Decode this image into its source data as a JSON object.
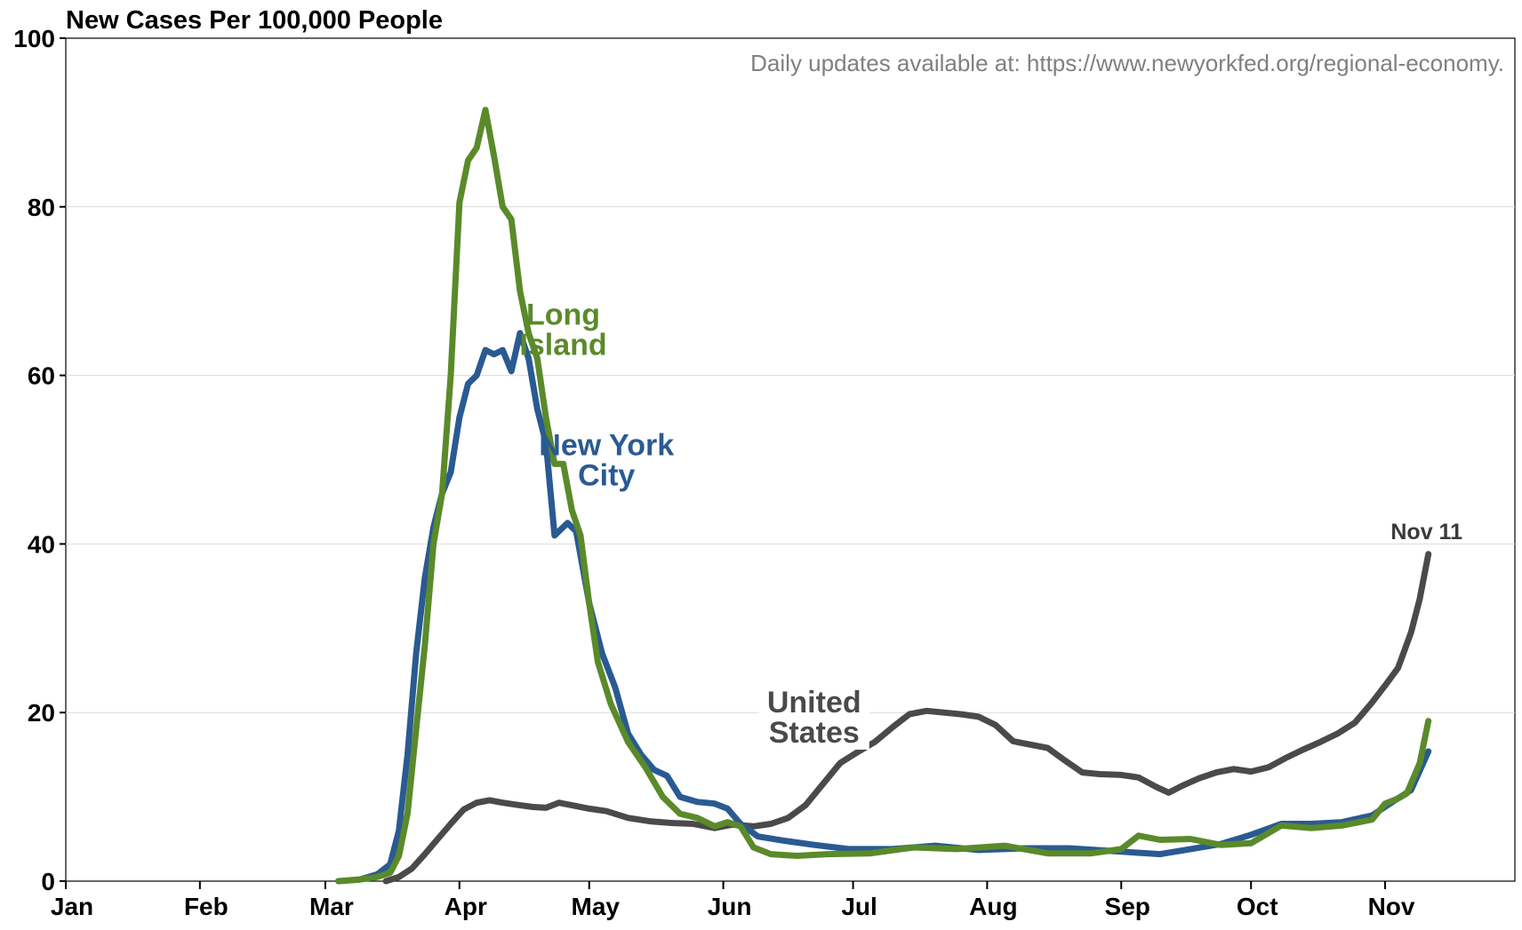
{
  "chart_data": {
    "type": "line",
    "title": "New Cases Per 100,000 People",
    "note": "Daily updates available at: https://www.newyorkfed.org/regional-economy.",
    "xlabel": "",
    "ylabel": "",
    "x_ticks": [
      "Jan",
      "Feb",
      "Mar",
      "Apr",
      "May",
      "Jun",
      "Jul",
      "Aug",
      "Sep",
      "Oct",
      "Nov"
    ],
    "y_ticks": [
      0,
      20,
      40,
      60,
      80,
      100
    ],
    "xlim": [
      "2020-01-01",
      "2020-12-01"
    ],
    "ylim": [
      0,
      100
    ],
    "grid": "horizontal",
    "end_label": "Nov 11",
    "series": [
      {
        "name": "United States",
        "label_lines": [
          "United",
          "States"
        ],
        "color": "#4a4a4a",
        "points": [
          [
            "2020-03-15",
            0
          ],
          [
            "2020-03-18",
            0.5
          ],
          [
            "2020-03-21",
            1.5
          ],
          [
            "2020-03-24",
            3.2
          ],
          [
            "2020-03-27",
            5
          ],
          [
            "2020-03-30",
            6.8
          ],
          [
            "2020-04-02",
            8.5
          ],
          [
            "2020-04-05",
            9.3
          ],
          [
            "2020-04-08",
            9.6
          ],
          [
            "2020-04-11",
            9.3
          ],
          [
            "2020-04-15",
            9.0
          ],
          [
            "2020-04-18",
            8.8
          ],
          [
            "2020-04-21",
            8.7
          ],
          [
            "2020-04-24",
            9.3
          ],
          [
            "2020-04-27",
            9.0
          ],
          [
            "2020-05-01",
            8.6
          ],
          [
            "2020-05-05",
            8.3
          ],
          [
            "2020-05-10",
            7.5
          ],
          [
            "2020-05-15",
            7.1
          ],
          [
            "2020-05-20",
            6.9
          ],
          [
            "2020-05-25",
            6.8
          ],
          [
            "2020-05-30",
            6.3
          ],
          [
            "2020-06-03",
            6.7
          ],
          [
            "2020-06-08",
            6.5
          ],
          [
            "2020-06-12",
            6.8
          ],
          [
            "2020-06-16",
            7.5
          ],
          [
            "2020-06-20",
            9.0
          ],
          [
            "2020-06-24",
            11.5
          ],
          [
            "2020-06-28",
            14.0
          ],
          [
            "2020-07-02",
            15.3
          ],
          [
            "2020-07-06",
            16.5
          ],
          [
            "2020-07-10",
            18.2
          ],
          [
            "2020-07-14",
            19.8
          ],
          [
            "2020-07-18",
            20.2
          ],
          [
            "2020-07-22",
            20.0
          ],
          [
            "2020-07-26",
            19.8
          ],
          [
            "2020-07-30",
            19.5
          ],
          [
            "2020-08-03",
            18.5
          ],
          [
            "2020-08-07",
            16.6
          ],
          [
            "2020-08-11",
            16.2
          ],
          [
            "2020-08-15",
            15.8
          ],
          [
            "2020-08-19",
            14.3
          ],
          [
            "2020-08-23",
            12.9
          ],
          [
            "2020-08-27",
            12.7
          ],
          [
            "2020-09-01",
            12.6
          ],
          [
            "2020-09-05",
            12.3
          ],
          [
            "2020-09-09",
            11.2
          ],
          [
            "2020-09-12",
            10.5
          ],
          [
            "2020-09-15",
            11.3
          ],
          [
            "2020-09-19",
            12.2
          ],
          [
            "2020-09-23",
            12.9
          ],
          [
            "2020-09-27",
            13.3
          ],
          [
            "2020-10-01",
            13.0
          ],
          [
            "2020-10-05",
            13.5
          ],
          [
            "2020-10-09",
            14.6
          ],
          [
            "2020-10-13",
            15.6
          ],
          [
            "2020-10-17",
            16.5
          ],
          [
            "2020-10-21",
            17.5
          ],
          [
            "2020-10-25",
            18.8
          ],
          [
            "2020-10-29",
            21.2
          ],
          [
            "2020-11-01",
            23.2
          ],
          [
            "2020-11-04",
            25.3
          ],
          [
            "2020-11-07",
            29.5
          ],
          [
            "2020-11-09",
            33.5
          ],
          [
            "2020-11-11",
            38.8
          ]
        ]
      },
      {
        "name": "New York City",
        "label_lines": [
          "New York",
          "City"
        ],
        "color": "#2a5a92",
        "points": [
          [
            "2020-03-04",
            0
          ],
          [
            "2020-03-09",
            0.2
          ],
          [
            "2020-03-13",
            0.8
          ],
          [
            "2020-03-16",
            2
          ],
          [
            "2020-03-18",
            6
          ],
          [
            "2020-03-20",
            15
          ],
          [
            "2020-03-22",
            27
          ],
          [
            "2020-03-24",
            36
          ],
          [
            "2020-03-26",
            42
          ],
          [
            "2020-03-28",
            46
          ],
          [
            "2020-03-30",
            48.5
          ],
          [
            "2020-04-01",
            55
          ],
          [
            "2020-04-03",
            59
          ],
          [
            "2020-04-05",
            60
          ],
          [
            "2020-04-07",
            63
          ],
          [
            "2020-04-09",
            62.5
          ],
          [
            "2020-04-11",
            63
          ],
          [
            "2020-04-13",
            60.5
          ],
          [
            "2020-04-15",
            65
          ],
          [
            "2020-04-17",
            62
          ],
          [
            "2020-04-19",
            56
          ],
          [
            "2020-04-21",
            52
          ],
          [
            "2020-04-23",
            41
          ],
          [
            "2020-04-26",
            42.5
          ],
          [
            "2020-04-28",
            41.5
          ],
          [
            "2020-05-01",
            33
          ],
          [
            "2020-05-04",
            27
          ],
          [
            "2020-05-07",
            23
          ],
          [
            "2020-05-10",
            17.5
          ],
          [
            "2020-05-13",
            15
          ],
          [
            "2020-05-16",
            13.2
          ],
          [
            "2020-05-19",
            12.5
          ],
          [
            "2020-05-22",
            10
          ],
          [
            "2020-05-26",
            9.4
          ],
          [
            "2020-05-30",
            9.2
          ],
          [
            "2020-06-02",
            8.6
          ],
          [
            "2020-06-05",
            6.8
          ],
          [
            "2020-06-09",
            5.3
          ],
          [
            "2020-06-15",
            4.8
          ],
          [
            "2020-06-22",
            4.3
          ],
          [
            "2020-06-30",
            3.8
          ],
          [
            "2020-07-10",
            3.8
          ],
          [
            "2020-07-20",
            4.2
          ],
          [
            "2020-07-30",
            3.7
          ],
          [
            "2020-08-10",
            3.9
          ],
          [
            "2020-08-20",
            3.9
          ],
          [
            "2020-09-01",
            3.5
          ],
          [
            "2020-09-10",
            3.2
          ],
          [
            "2020-09-17",
            3.8
          ],
          [
            "2020-09-24",
            4.4
          ],
          [
            "2020-10-01",
            5.5
          ],
          [
            "2020-10-08",
            6.8
          ],
          [
            "2020-10-15",
            6.8
          ],
          [
            "2020-10-22",
            7.0
          ],
          [
            "2020-10-29",
            7.8
          ],
          [
            "2020-11-03",
            9.5
          ],
          [
            "2020-11-07",
            10.8
          ],
          [
            "2020-11-11",
            15.4
          ]
        ]
      },
      {
        "name": "Long Island",
        "label_lines": [
          "Long",
          "Island"
        ],
        "color": "#5a8a2a",
        "points": [
          [
            "2020-03-04",
            0
          ],
          [
            "2020-03-09",
            0.2
          ],
          [
            "2020-03-13",
            0.5
          ],
          [
            "2020-03-16",
            1
          ],
          [
            "2020-03-18",
            3
          ],
          [
            "2020-03-20",
            8
          ],
          [
            "2020-03-22",
            18
          ],
          [
            "2020-03-24",
            28
          ],
          [
            "2020-03-26",
            40
          ],
          [
            "2020-03-28",
            46
          ],
          [
            "2020-03-30",
            60
          ],
          [
            "2020-04-01",
            80.5
          ],
          [
            "2020-04-03",
            85.5
          ],
          [
            "2020-04-05",
            87
          ],
          [
            "2020-04-07",
            91.5
          ],
          [
            "2020-04-09",
            86
          ],
          [
            "2020-04-11",
            80
          ],
          [
            "2020-04-13",
            78.5
          ],
          [
            "2020-04-15",
            70
          ],
          [
            "2020-04-17",
            65
          ],
          [
            "2020-04-19",
            62
          ],
          [
            "2020-04-21",
            55
          ],
          [
            "2020-04-23",
            49.5
          ],
          [
            "2020-04-25",
            49.5
          ],
          [
            "2020-04-27",
            44
          ],
          [
            "2020-04-29",
            41
          ],
          [
            "2020-05-01",
            33
          ],
          [
            "2020-05-03",
            26
          ],
          [
            "2020-05-06",
            21
          ],
          [
            "2020-05-10",
            16.5
          ],
          [
            "2020-05-14",
            13.5
          ],
          [
            "2020-05-18",
            10
          ],
          [
            "2020-05-22",
            8
          ],
          [
            "2020-05-26",
            7.5
          ],
          [
            "2020-05-30",
            6.5
          ],
          [
            "2020-06-02",
            7
          ],
          [
            "2020-06-05",
            6.5
          ],
          [
            "2020-06-08",
            4
          ],
          [
            "2020-06-12",
            3.2
          ],
          [
            "2020-06-18",
            3.0
          ],
          [
            "2020-06-25",
            3.2
          ],
          [
            "2020-07-05",
            3.3
          ],
          [
            "2020-07-15",
            4.0
          ],
          [
            "2020-07-25",
            3.8
          ],
          [
            "2020-08-05",
            4.2
          ],
          [
            "2020-08-15",
            3.3
          ],
          [
            "2020-08-25",
            3.3
          ],
          [
            "2020-09-01",
            3.8
          ],
          [
            "2020-09-05",
            5.4
          ],
          [
            "2020-09-10",
            4.9
          ],
          [
            "2020-09-17",
            5.0
          ],
          [
            "2020-09-24",
            4.3
          ],
          [
            "2020-10-01",
            4.5
          ],
          [
            "2020-10-08",
            6.6
          ],
          [
            "2020-10-15",
            6.3
          ],
          [
            "2020-10-22",
            6.6
          ],
          [
            "2020-10-29",
            7.3
          ],
          [
            "2020-11-01",
            9.2
          ],
          [
            "2020-11-04",
            9.8
          ],
          [
            "2020-11-06",
            10.4
          ],
          [
            "2020-11-09",
            14
          ],
          [
            "2020-11-11",
            19
          ]
        ]
      }
    ]
  }
}
